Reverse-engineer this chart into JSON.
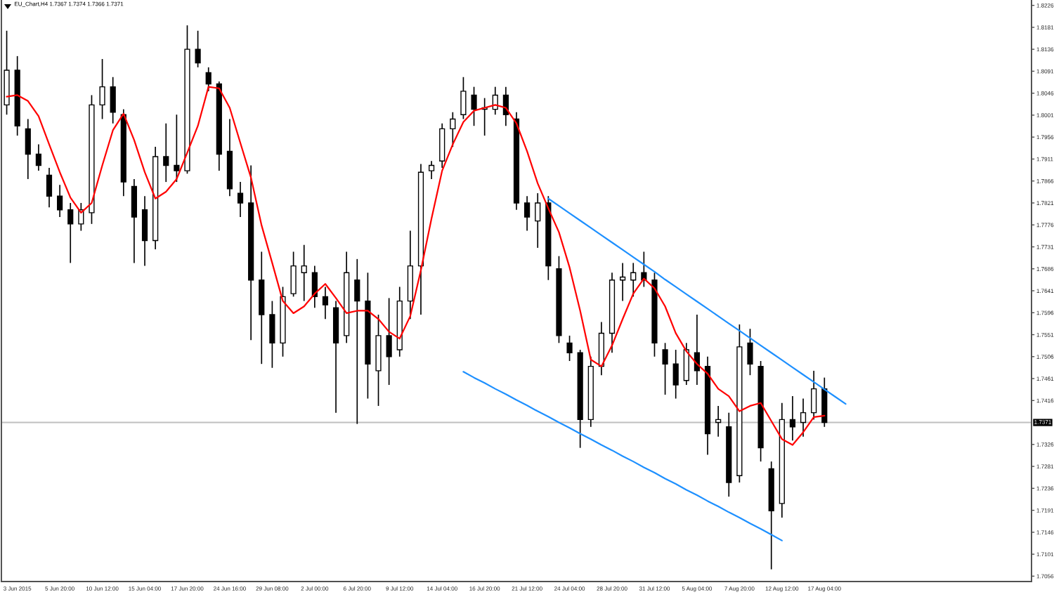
{
  "chart_data": {
    "type": "candlestick",
    "title": "EU_Chart,H4 1.7367 1.7374 1.7366 1.7371",
    "categories": [
      null,
      "3 Jun 2015",
      null,
      null,
      null,
      "5 Jun 20:00",
      null,
      null,
      null,
      "10 Jun 12:00",
      null,
      null,
      null,
      "15 Jun 04:00",
      null,
      null,
      null,
      "17 Jun 20:00",
      null,
      null,
      null,
      "24 Jun 16:00",
      null,
      null,
      null,
      "29 Jun 08:00",
      null,
      null,
      null,
      "2 Jul 00:00",
      null,
      null,
      null,
      "6 Jul 20:00",
      null,
      null,
      null,
      "9 Jul 12:00",
      null,
      null,
      null,
      "14 Jul 04:00",
      null,
      null,
      null,
      "16 Jul 20:00",
      null,
      null,
      null,
      "21 Jul 12:00",
      null,
      null,
      null,
      "24 Jul 04:00",
      null,
      null,
      null,
      "28 Jul 20:00",
      null,
      null,
      null,
      "31 Jul 12:00",
      null,
      null,
      null,
      "5 Aug 04:00",
      null,
      null,
      null,
      "7 Aug 20:00",
      null,
      null,
      null,
      "12 Aug 12:00",
      null,
      null,
      null,
      "17 Aug 04:00",
      null,
      null,
      null,
      null,
      null,
      null,
      null,
      null,
      null,
      null,
      null,
      null,
      null,
      null,
      null,
      null,
      null,
      null,
      null
    ],
    "ylim": [
      1.7045,
      1.8237
    ],
    "yticks": [
      1.7056,
      1.7101,
      1.7146,
      1.7191,
      1.7236,
      1.7281,
      1.7326,
      1.7416,
      1.7461,
      1.7506,
      1.7551,
      1.7596,
      1.7641,
      1.7686,
      1.7731,
      1.7776,
      1.7821,
      1.7866,
      1.7911,
      1.7956,
      1.8001,
      1.8046,
      1.8091,
      1.8136,
      1.8181,
      1.8226
    ],
    "ref_lines": [
      {
        "axis": "y",
        "value": 1.7371,
        "label": "1.7371",
        "color": "#c0c0c0"
      }
    ],
    "series": [
      {
        "type": "line",
        "color": "#ff0000",
        "values": [
          1.8039,
          1.8042,
          1.803,
          1.7999,
          1.7941,
          1.7884,
          1.7832,
          1.7801,
          1.7821,
          1.7898,
          1.797,
          1.8004,
          1.795,
          1.7884,
          1.783,
          1.7844,
          1.787,
          1.7924,
          1.7979,
          1.8059,
          1.8056,
          1.8016,
          1.7944,
          1.7873,
          1.7775,
          1.7698,
          1.762,
          1.7595,
          1.7609,
          1.7635,
          1.7655,
          1.7626,
          1.7595,
          1.76,
          1.76,
          1.7583,
          1.7557,
          1.7543,
          1.7589,
          1.7683,
          1.7789,
          1.7887,
          1.7941,
          1.7987,
          1.801,
          1.8016,
          1.8022,
          1.8016,
          1.7984,
          1.7927,
          1.7861,
          1.781,
          1.7761,
          1.7689,
          1.76,
          1.75,
          1.7486,
          1.7529,
          1.7583,
          1.7635,
          1.7666,
          1.7646,
          1.7609,
          1.7554,
          1.7517,
          1.7491,
          1.7471,
          1.744,
          1.7425,
          1.7394,
          1.7405,
          1.7411,
          1.7374,
          1.7337,
          1.7325,
          1.7351,
          1.7382,
          1.7385,
          null,
          null,
          null,
          null,
          null,
          null,
          null,
          null,
          null,
          null,
          null,
          null,
          null,
          null,
          null,
          null,
          null,
          null,
          null
        ]
      },
      {
        "type": "line",
        "color": "#1e90ff",
        "values": [
          null,
          null,
          null,
          null,
          null,
          null,
          null,
          null,
          null,
          null,
          null,
          null,
          null,
          null,
          null,
          null,
          null,
          null,
          null,
          null,
          null,
          null,
          null,
          null,
          null,
          null,
          null,
          null,
          null,
          null,
          null,
          null,
          null,
          null,
          null,
          null,
          null,
          null,
          null,
          null,
          null,
          null,
          null,
          null,
          null,
          null,
          null,
          null,
          null,
          null,
          null,
          1.783,
          1.7815,
          1.78,
          1.7785,
          1.777,
          1.7755,
          1.774,
          1.7725,
          1.771,
          1.7695,
          1.768,
          1.7664,
          1.7649,
          1.7634,
          1.7619,
          1.7604,
          1.7589,
          1.7574,
          1.7559,
          1.7544,
          1.7529,
          1.7514,
          1.7499,
          1.7484,
          1.7469,
          1.7454,
          1.7439,
          1.7424,
          1.7409,
          null,
          null,
          null,
          null,
          null,
          null,
          null,
          null,
          null,
          null,
          null,
          null,
          null,
          null,
          null,
          null,
          null
        ]
      },
      {
        "type": "line",
        "color": "#1e90ff",
        "values": [
          null,
          null,
          null,
          null,
          null,
          null,
          null,
          null,
          null,
          null,
          null,
          null,
          null,
          null,
          null,
          null,
          null,
          null,
          null,
          null,
          null,
          null,
          null,
          null,
          null,
          null,
          null,
          null,
          null,
          null,
          null,
          null,
          null,
          null,
          null,
          null,
          null,
          null,
          null,
          null,
          null,
          null,
          null,
          1.7475,
          1.7463,
          1.7452,
          1.744,
          1.7429,
          1.7417,
          1.7406,
          1.7394,
          1.7383,
          1.7371,
          1.736,
          1.7348,
          1.7337,
          1.7325,
          1.7314,
          1.7302,
          1.7291,
          1.7279,
          1.7268,
          1.7256,
          1.7245,
          1.7233,
          1.7222,
          1.721,
          1.7199,
          1.7187,
          1.7176,
          1.7164,
          1.7153,
          1.7141,
          1.7129,
          null,
          null,
          null,
          null,
          null,
          null,
          null,
          null,
          null,
          null,
          null,
          null,
          null,
          null,
          null,
          null,
          null,
          null,
          null,
          null,
          null,
          null,
          null
        ]
      },
      {
        "color": "#000000",
        "ohlc": [
          [
            1.8022,
            1.8174,
            1.8002,
            1.8093
          ],
          [
            1.8093,
            1.8122,
            1.7959,
            1.7979
          ],
          [
            1.7973,
            1.7993,
            1.787,
            1.7921
          ],
          [
            1.7921,
            1.7941,
            1.7887,
            1.7898
          ],
          [
            1.7878,
            1.7893,
            1.7812,
            1.7835
          ],
          [
            1.7835,
            1.7858,
            1.7792,
            1.7807
          ],
          [
            1.7807,
            1.7821,
            1.7698,
            1.7778
          ],
          [
            1.7778,
            1.7821,
            1.7764,
            1.7807
          ],
          [
            1.7801,
            1.8042,
            1.7778,
            1.8022
          ],
          [
            1.8022,
            1.8116,
            1.7993,
            1.8059
          ],
          [
            1.8059,
            1.8079,
            1.7984,
            1.8007
          ],
          [
            1.8002,
            1.8013,
            1.7835,
            1.7864
          ],
          [
            1.7855,
            1.787,
            1.7698,
            1.7792
          ],
          [
            1.7807,
            1.7835,
            1.7692,
            1.7744
          ],
          [
            1.7744,
            1.7936,
            1.7726,
            1.7916
          ],
          [
            1.7916,
            1.7984,
            1.7864,
            1.7898
          ],
          [
            1.7898,
            1.8002,
            1.7864,
            1.7887
          ],
          [
            1.7887,
            1.8185,
            1.7881,
            1.8136
          ],
          [
            1.8136,
            1.8174,
            1.8099,
            1.8108
          ],
          [
            1.8088,
            1.8099,
            1.805,
            1.8065
          ],
          [
            1.8065,
            1.807,
            1.7887,
            1.7921
          ],
          [
            1.7927,
            1.7993,
            1.7835,
            1.785
          ],
          [
            1.7841,
            1.7864,
            1.7792,
            1.7821
          ],
          [
            1.7821,
            1.7898,
            1.754,
            1.7663
          ],
          [
            1.7663,
            1.7721,
            1.7491,
            1.7592
          ],
          [
            1.7592,
            1.762,
            1.7483,
            1.7534
          ],
          [
            1.7534,
            1.7649,
            1.7506,
            1.7629
          ],
          [
            1.7635,
            1.7721,
            1.7629,
            1.7692
          ],
          [
            1.7678,
            1.7735,
            1.762,
            1.7692
          ],
          [
            1.7678,
            1.7692,
            1.7606,
            1.7629
          ],
          [
            1.7629,
            1.7649,
            1.7583,
            1.7612
          ],
          [
            1.7606,
            1.762,
            1.7391,
            1.7534
          ],
          [
            1.7549,
            1.7721,
            1.7534,
            1.7678
          ],
          [
            1.7663,
            1.7706,
            1.7368,
            1.762
          ],
          [
            1.762,
            1.7678,
            1.742,
            1.7491
          ],
          [
            1.7477,
            1.7592,
            1.7405,
            1.7549
          ],
          [
            1.7549,
            1.7626,
            1.7448,
            1.7506
          ],
          [
            1.752,
            1.7649,
            1.7506,
            1.762
          ],
          [
            1.762,
            1.7764,
            1.7583,
            1.7692
          ],
          [
            1.7692,
            1.7901,
            1.7592,
            1.7884
          ],
          [
            1.7887,
            1.7907,
            1.787,
            1.7898
          ],
          [
            1.7907,
            1.7984,
            1.7893,
            1.7973
          ],
          [
            1.7973,
            1.8007,
            1.7936,
            1.7993
          ],
          [
            1.8002,
            1.8079,
            1.7993,
            1.805
          ],
          [
            1.8042,
            1.8059,
            1.7979,
            1.8013
          ],
          [
            1.8013,
            1.8036,
            1.7959,
            1.8016
          ],
          [
            1.8013,
            1.8059,
            1.8002,
            1.8042
          ],
          [
            1.8042,
            1.8059,
            1.7979,
            1.8002
          ],
          [
            1.7993,
            1.8007,
            1.7807,
            1.7821
          ],
          [
            1.7821,
            1.7835,
            1.7764,
            1.7792
          ],
          [
            1.7784,
            1.7841,
            1.7729,
            1.7821
          ],
          [
            1.7821,
            1.7835,
            1.7663,
            1.7692
          ],
          [
            1.7686,
            1.7712,
            1.7534,
            1.7549
          ],
          [
            1.7534,
            1.7549,
            1.7497,
            1.7514
          ],
          [
            1.7514,
            1.752,
            1.7319,
            1.7377
          ],
          [
            1.7377,
            1.7506,
            1.7362,
            1.7486
          ],
          [
            1.7486,
            1.7577,
            1.7468,
            1.7554
          ],
          [
            1.7554,
            1.7678,
            1.7514,
            1.7663
          ],
          [
            1.7663,
            1.7698,
            1.762,
            1.7669
          ],
          [
            1.7663,
            1.7698,
            1.7629,
            1.7678
          ],
          [
            1.7678,
            1.7721,
            1.7649,
            1.7663
          ],
          [
            1.7663,
            1.7678,
            1.7506,
            1.7534
          ],
          [
            1.752,
            1.7534,
            1.7428,
            1.7491
          ],
          [
            1.7491,
            1.752,
            1.742,
            1.7448
          ],
          [
            1.7457,
            1.7534,
            1.7448,
            1.752
          ],
          [
            1.7514,
            1.7592,
            1.7448,
            1.7477
          ],
          [
            1.7486,
            1.7506,
            1.7305,
            1.7348
          ],
          [
            1.7371,
            1.7405,
            1.7342,
            1.7377
          ],
          [
            1.7362,
            1.7391,
            1.7219,
            1.7248
          ],
          [
            1.7262,
            1.7572,
            1.7248,
            1.7526
          ],
          [
            1.7534,
            1.7563,
            1.7468,
            1.7491
          ],
          [
            1.7486,
            1.7497,
            1.7291,
            1.7319
          ],
          [
            1.7276,
            1.7291,
            1.707,
            1.719
          ],
          [
            1.7205,
            1.7411,
            1.7176,
            1.7377
          ],
          [
            1.7377,
            1.7425,
            1.7334,
            1.7362
          ],
          [
            1.7371,
            1.742,
            1.7342,
            1.7391
          ],
          [
            1.7391,
            1.7477,
            1.7377,
            1.744
          ],
          [
            1.744,
            1.7463,
            1.7362,
            1.7371
          ],
          null,
          null,
          null,
          null,
          null,
          null,
          null,
          null,
          null,
          null,
          null,
          null,
          null,
          null,
          null,
          null,
          null,
          null,
          null
        ]
      }
    ]
  }
}
